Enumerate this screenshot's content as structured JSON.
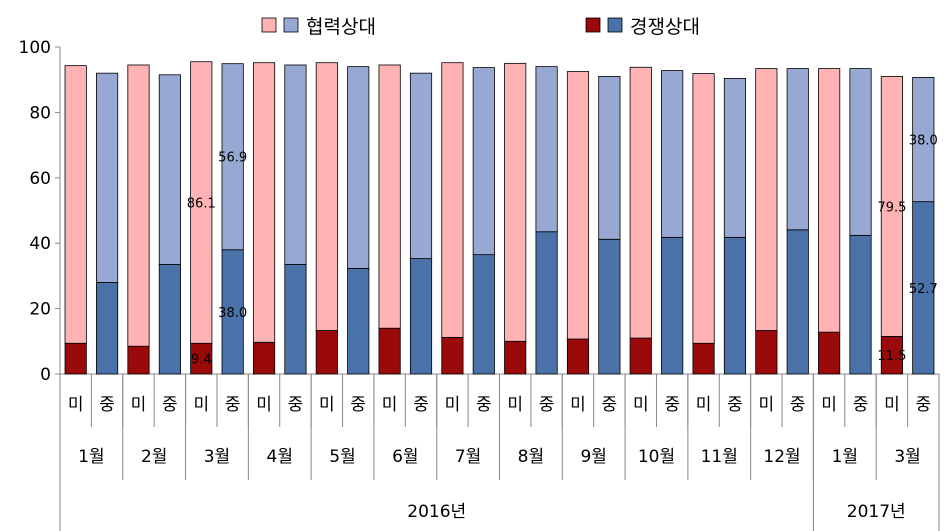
{
  "chart_data": {
    "type": "bar",
    "stacked": true,
    "ylim": [
      0,
      100
    ],
    "yticks": [
      0,
      20,
      40,
      60,
      80,
      100
    ],
    "legend": [
      {
        "name": "협력상대",
        "colors": [
          "#FFB3B5",
          "#97A9D2"
        ]
      },
      {
        "name": "경쟁상대",
        "colors": [
          "#9A0A0A",
          "#4A72A8"
        ]
      }
    ],
    "colors": {
      "mi_competitive": "#9A0A0A",
      "mi_cooperative": "#FFB3B5",
      "zh_competitive": "#4A72A8",
      "zh_cooperative": "#97A9D2"
    },
    "year_groups": [
      {
        "label": "2016년",
        "months": 12
      },
      {
        "label": "2017년",
        "months": 2
      }
    ],
    "months": [
      "1월",
      "2월",
      "3월",
      "4월",
      "5월",
      "6월",
      "7월",
      "8월",
      "9월",
      "10월",
      "11월",
      "12월",
      "1월",
      "3월"
    ],
    "country_labels": [
      "미",
      "중"
    ],
    "bars": [
      {
        "country": "미",
        "competitive": 9.4,
        "cooperative": 84.9
      },
      {
        "country": "중",
        "competitive": 28.0,
        "cooperative": 64.0
      },
      {
        "country": "미",
        "competitive": 8.5,
        "cooperative": 86.0
      },
      {
        "country": "중",
        "competitive": 33.5,
        "cooperative": 58.0
      },
      {
        "country": "미",
        "competitive": 9.4,
        "cooperative": 86.1
      },
      {
        "country": "중",
        "competitive": 38.0,
        "cooperative": 56.9
      },
      {
        "country": "미",
        "competitive": 9.7,
        "cooperative": 85.5
      },
      {
        "country": "중",
        "competitive": 33.5,
        "cooperative": 61.0
      },
      {
        "country": "미",
        "competitive": 13.3,
        "cooperative": 81.9
      },
      {
        "country": "중",
        "competitive": 32.3,
        "cooperative": 61.7
      },
      {
        "country": "미",
        "competitive": 14.0,
        "cooperative": 80.5
      },
      {
        "country": "중",
        "competitive": 35.3,
        "cooperative": 56.7
      },
      {
        "country": "미",
        "competitive": 11.2,
        "cooperative": 84.0
      },
      {
        "country": "중",
        "competitive": 36.5,
        "cooperative": 57.2
      },
      {
        "country": "미",
        "competitive": 10.0,
        "cooperative": 85.0
      },
      {
        "country": "중",
        "competitive": 43.5,
        "cooperative": 50.5
      },
      {
        "country": "미",
        "competitive": 10.7,
        "cooperative": 81.8
      },
      {
        "country": "중",
        "competitive": 41.2,
        "cooperative": 49.8
      },
      {
        "country": "미",
        "competitive": 11.0,
        "cooperative": 82.8
      },
      {
        "country": "중",
        "competitive": 41.8,
        "cooperative": 51.0
      },
      {
        "country": "미",
        "competitive": 9.4,
        "cooperative": 82.5
      },
      {
        "country": "중",
        "competitive": 41.8,
        "cooperative": 48.6
      },
      {
        "country": "미",
        "competitive": 13.3,
        "cooperative": 80.1
      },
      {
        "country": "중",
        "competitive": 44.1,
        "cooperative": 49.3
      },
      {
        "country": "미",
        "competitive": 12.8,
        "cooperative": 80.6
      },
      {
        "country": "중",
        "competitive": 42.4,
        "cooperative": 51.0
      },
      {
        "country": "미",
        "competitive": 11.5,
        "cooperative": 79.5
      },
      {
        "country": "중",
        "competitive": 52.7,
        "cooperative": 38.0
      }
    ],
    "data_labels": [
      {
        "bar": 4,
        "segment": "competitive",
        "text": "9.4"
      },
      {
        "bar": 4,
        "segment": "cooperative",
        "text": "86.1"
      },
      {
        "bar": 5,
        "segment": "competitive",
        "text": "38.0"
      },
      {
        "bar": 5,
        "segment": "cooperative",
        "text": "56.9"
      },
      {
        "bar": 26,
        "segment": "competitive",
        "text": "11.5"
      },
      {
        "bar": 26,
        "segment": "cooperative",
        "text": "79.5"
      },
      {
        "bar": 27,
        "segment": "competitive",
        "text": "52.7"
      },
      {
        "bar": 27,
        "segment": "cooperative",
        "text": "38.0"
      }
    ]
  }
}
